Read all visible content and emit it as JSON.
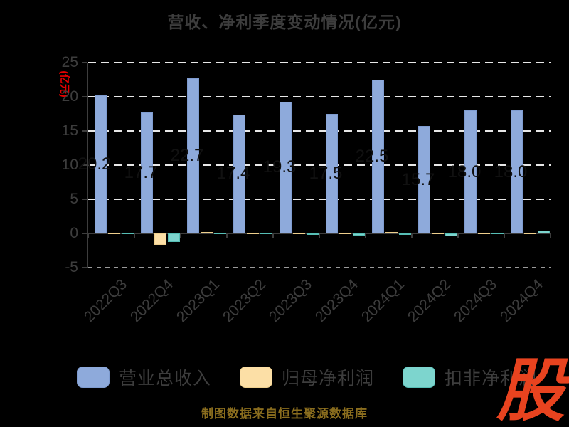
{
  "chart_data": {
    "type": "bar",
    "title": "营收、净利季度变动情况(亿元)",
    "ylabel": "(亿元)",
    "categories": [
      "2022Q3",
      "2022Q4",
      "2023Q1",
      "2023Q2",
      "2023Q3",
      "2023Q4",
      "2024Q1",
      "2024Q2",
      "2024Q3",
      "2024Q4"
    ],
    "series": [
      {
        "name": "营业总收入",
        "color": "#8EAADB",
        "border_color": "#7F9CD0",
        "values": [
          20.2,
          17.7,
          22.7,
          17.4,
          19.3,
          17.5,
          22.5,
          15.7,
          18.0,
          18.0
        ],
        "labels": [
          "20.2",
          "17.7",
          "22.7",
          "17.4",
          "19.3",
          "17.5",
          "22.5",
          "15.7",
          "18.0",
          "18.0"
        ]
      },
      {
        "name": "归母净利润",
        "color": "#FCDFA6",
        "border_color": "#EECF8C",
        "values": [
          0.15,
          -1.7,
          0.2,
          0.15,
          0.15,
          0.15,
          0.2,
          0.15,
          0.15,
          0.1
        ]
      },
      {
        "name": "扣非净利润",
        "color": "#7DD5CE",
        "border_color": "#56BEB5",
        "values": [
          0.05,
          -1.3,
          0.05,
          0.05,
          -0.2,
          -0.3,
          -0.15,
          -0.4,
          0.05,
          0.4
        ]
      }
    ],
    "yticks": [
      25,
      20,
      15,
      10,
      5,
      0,
      -5
    ],
    "ylim": [
      -5,
      25
    ],
    "grid": "horizontal dashed white on black",
    "legend_position": "bottom"
  },
  "footer": {
    "text": "制图数据来自恒生聚源数据库"
  },
  "logo": {
    "text": "股"
  },
  "colors": {
    "background": "#000000",
    "axis_text": "#3d3d3d",
    "bar_label": "#111111",
    "ylabel_red": "#e60000",
    "footer_gold": "#8a6d1e",
    "logo_red": "#e8431f",
    "gridline": "#e7e7e7"
  }
}
